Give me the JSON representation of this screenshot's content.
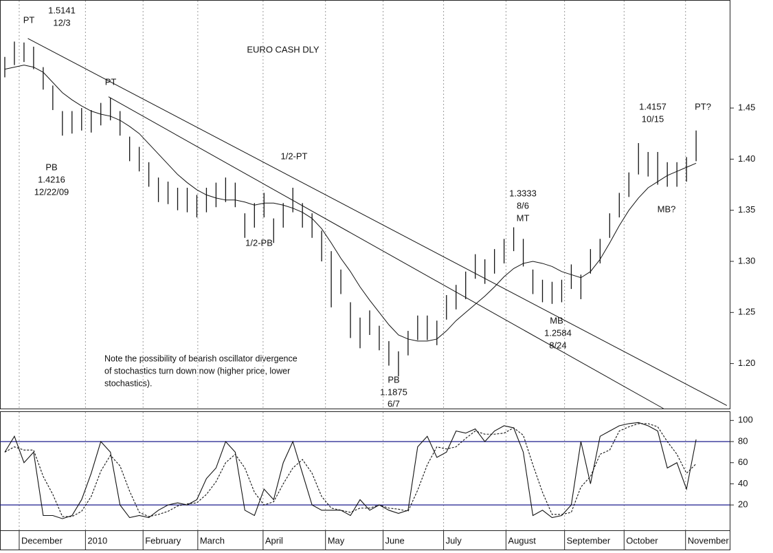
{
  "chart_data": [
    {
      "type": "ohlc",
      "title": "EURO CASH DLY",
      "xlim": [
        -0.5,
        75.5
      ],
      "xticks": [
        {
          "value": 1.5,
          "label": "December"
        },
        {
          "value": 8.4,
          "label": "2010"
        },
        {
          "value": 14.4,
          "label": "February"
        },
        {
          "value": 20.1,
          "label": "March"
        },
        {
          "value": 26.9,
          "label": "April"
        },
        {
          "value": 33.4,
          "label": "May"
        },
        {
          "value": 39.4,
          "label": "June"
        },
        {
          "value": 45.7,
          "label": "July"
        },
        {
          "value": 52.2,
          "label": "August"
        },
        {
          "value": 58.3,
          "label": "September"
        },
        {
          "value": 64.5,
          "label": "October"
        },
        {
          "value": 70.9,
          "label": "November"
        }
      ],
      "ylim": [
        1.156,
        1.555
      ],
      "yticks": [
        1.45,
        {
          "value": 1.4,
          "label": "1.40"
        },
        1.35,
        {
          "value": 1.3,
          "label": "1.30"
        },
        1.25,
        {
          "value": 1.2,
          "label": "1.20"
        }
      ],
      "color": "#111111",
      "high": [
        1.5,
        1.515,
        1.5141,
        1.51,
        1.49,
        1.472,
        1.447,
        1.447,
        1.45,
        1.448,
        1.455,
        1.46,
        1.447,
        1.422,
        1.412,
        1.397,
        1.382,
        1.378,
        1.372,
        1.372,
        1.365,
        1.372,
        1.377,
        1.382,
        1.377,
        1.347,
        1.357,
        1.367,
        1.342,
        1.357,
        1.372,
        1.357,
        1.347,
        1.33,
        1.31,
        1.292,
        1.26,
        1.245,
        1.252,
        1.237,
        1.222,
        1.212,
        1.232,
        1.247,
        1.247,
        1.242,
        1.267,
        1.277,
        1.29,
        1.307,
        1.302,
        1.312,
        1.322,
        1.3333,
        1.322,
        1.292,
        1.282,
        1.28,
        1.282,
        1.297,
        1.287,
        1.312,
        1.322,
        1.347,
        1.367,
        1.387,
        1.4157,
        1.407,
        1.407,
        1.397,
        1.397,
        1.402,
        1.428
      ],
      "low": [
        1.48,
        1.492,
        1.495,
        1.488,
        1.468,
        1.448,
        1.423,
        1.425,
        1.428,
        1.426,
        1.433,
        1.438,
        1.423,
        1.398,
        1.388,
        1.373,
        1.358,
        1.356,
        1.35,
        1.348,
        1.343,
        1.348,
        1.353,
        1.358,
        1.353,
        1.323,
        1.333,
        1.343,
        1.318,
        1.333,
        1.348,
        1.333,
        1.323,
        1.3,
        1.255,
        1.268,
        1.225,
        1.215,
        1.228,
        1.213,
        1.198,
        1.1875,
        1.208,
        1.223,
        1.223,
        1.218,
        1.243,
        1.253,
        1.263,
        1.283,
        1.278,
        1.288,
        1.298,
        1.31,
        1.295,
        1.268,
        1.26,
        1.2584,
        1.26,
        1.273,
        1.263,
        1.288,
        1.298,
        1.323,
        1.343,
        1.363,
        1.385,
        1.383,
        1.375,
        1.373,
        1.373,
        1.378,
        1.398
      ],
      "ma": [
        1.488,
        1.49,
        1.492,
        1.49,
        1.485,
        1.475,
        1.465,
        1.458,
        1.452,
        1.447,
        1.444,
        1.442,
        1.438,
        1.432,
        1.425,
        1.415,
        1.405,
        1.395,
        1.385,
        1.377,
        1.37,
        1.365,
        1.362,
        1.36,
        1.36,
        1.358,
        1.355,
        1.357,
        1.357,
        1.355,
        1.352,
        1.348,
        1.342,
        1.332,
        1.318,
        1.303,
        1.29,
        1.275,
        1.262,
        1.25,
        1.238,
        1.228,
        1.224,
        1.222,
        1.222,
        1.224,
        1.232,
        1.242,
        1.25,
        1.258,
        1.266,
        1.275,
        1.285,
        1.293,
        1.298,
        1.3,
        1.298,
        1.295,
        1.29,
        1.287,
        1.284,
        1.29,
        1.302,
        1.318,
        1.335,
        1.35,
        1.362,
        1.372,
        1.378,
        1.384,
        1.388,
        1.392,
        1.396
      ],
      "trendlines": [
        {
          "x": [
            2.4,
            75.2
          ],
          "y": [
            1.518,
            1.159
          ]
        },
        {
          "x": [
            10.8,
            68.6
          ],
          "y": [
            1.461,
            1.156
          ]
        }
      ],
      "annotations": [
        "PT",
        "1.5141",
        "12/3",
        "PT",
        "PB",
        "1.4216",
        "12/22/09",
        "1/2-PT",
        "1/2-PB",
        "1.3333",
        "8/6",
        "MT",
        "MB",
        "1.2584",
        "8/24",
        "PB",
        "1.1875",
        "6/7",
        "1.4157",
        "10/15",
        "PT?",
        "MB?"
      ],
      "note": [
        "Note the possibility of bearish oscillator divergence",
        "of stochastics turn down now (higher price, lower",
        "stochastics)."
      ]
    },
    {
      "type": "line",
      "xlim": [
        -0.5,
        75.5
      ],
      "ylim": [
        -4,
        108
      ],
      "yticks": [
        100,
        80,
        60,
        40,
        20
      ],
      "hlines": [
        80,
        20
      ],
      "hline_color": "#1a1a8c",
      "series": [
        {
          "color": "#111111",
          "dash": false,
          "values": [
            70,
            85,
            60,
            70,
            10,
            10,
            7,
            10,
            25,
            50,
            80,
            70,
            20,
            8,
            10,
            8,
            15,
            20,
            22,
            20,
            25,
            45,
            55,
            80,
            70,
            15,
            10,
            35,
            25,
            60,
            80,
            50,
            20,
            15,
            15,
            15,
            10,
            25,
            15,
            20,
            15,
            12,
            15,
            75,
            85,
            65,
            70,
            90,
            88,
            92,
            80,
            90,
            95,
            93,
            70,
            10,
            15,
            8,
            10,
            20,
            80,
            40,
            85,
            90,
            95,
            97,
            98,
            95,
            90,
            55,
            60,
            35,
            82
          ]
        },
        {
          "color": "#111111",
          "dash": true,
          "values": [
            70,
            75,
            72,
            72,
            47,
            30,
            9,
            9,
            14,
            28,
            52,
            67,
            57,
            33,
            13,
            9,
            11,
            14,
            19,
            21,
            22,
            30,
            42,
            60,
            68,
            55,
            32,
            20,
            23,
            40,
            55,
            63,
            50,
            28,
            17,
            15,
            13,
            17,
            17,
            20,
            17,
            16,
            14,
            34,
            58,
            75,
            73,
            75,
            83,
            90,
            87,
            87,
            88,
            93,
            86,
            58,
            32,
            11,
            11,
            13,
            37,
            47,
            68,
            72,
            90,
            94,
            97,
            97,
            94,
            80,
            68,
            50,
            59
          ]
        }
      ]
    }
  ]
}
